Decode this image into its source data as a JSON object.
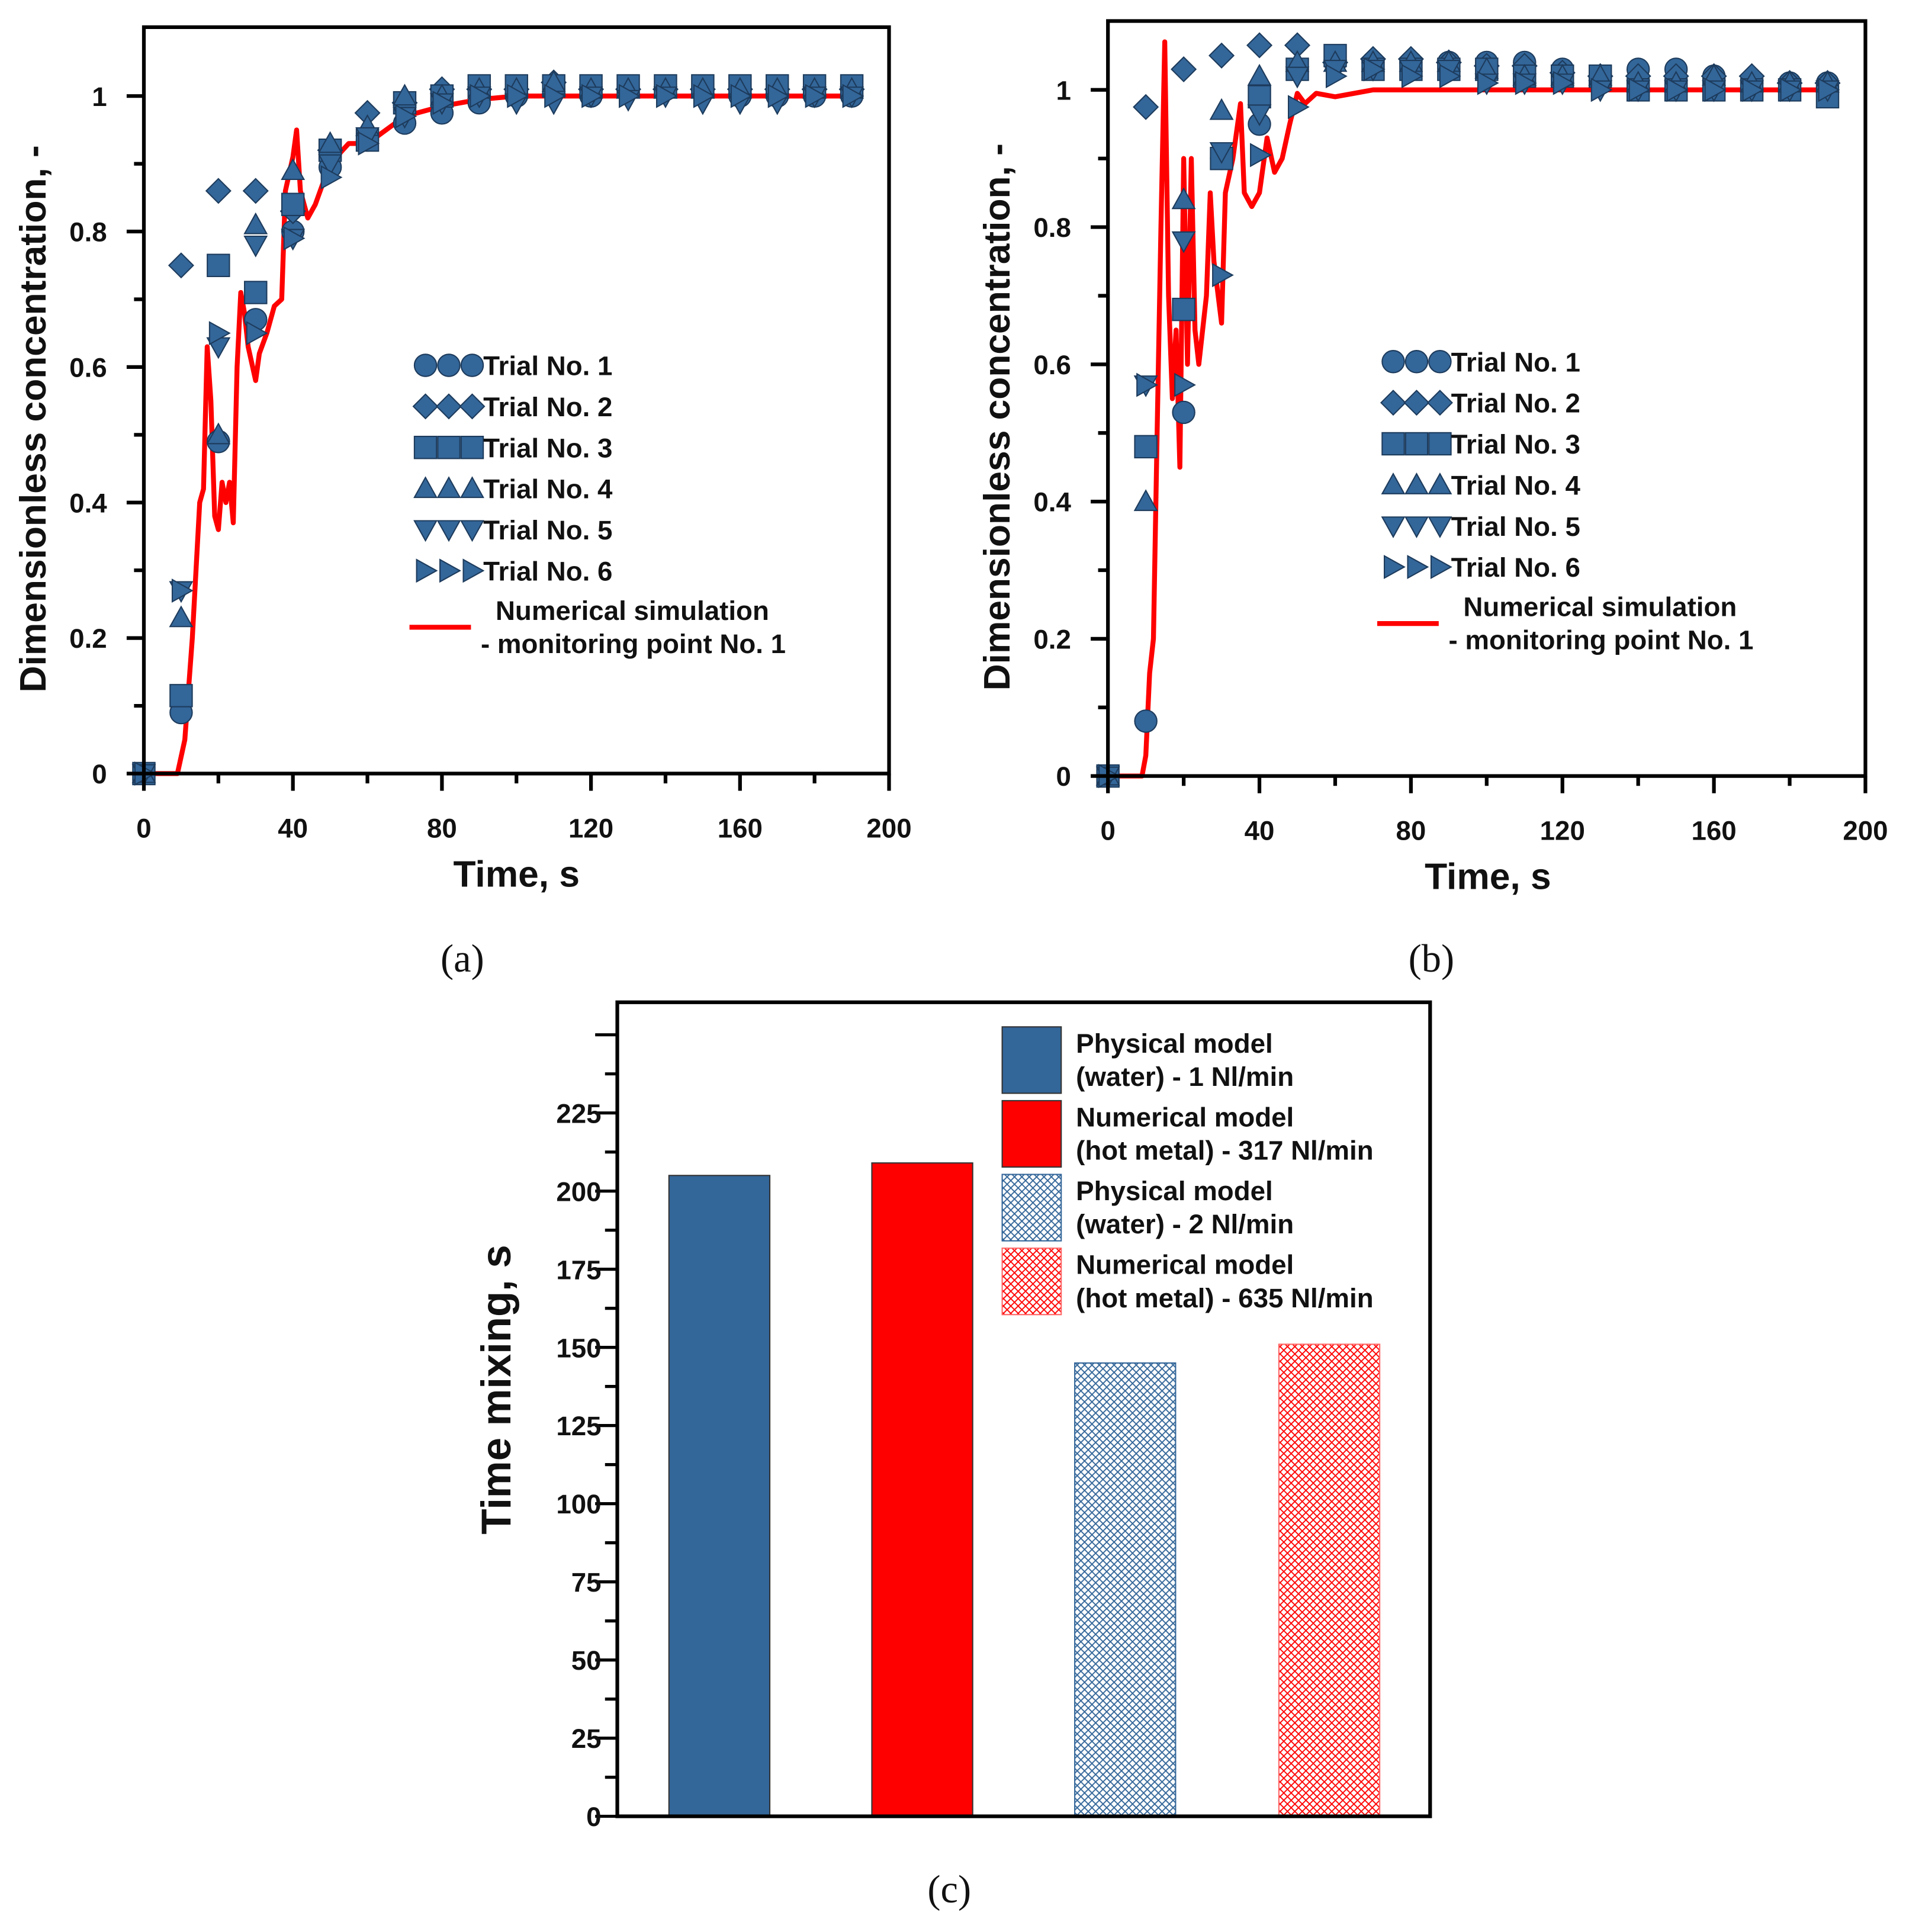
{
  "colors": {
    "marker": "#336699",
    "marker_edge": "#1d3b5c",
    "sim": "#ff0000",
    "physical": "#336699",
    "numerical": "#ff0000"
  },
  "chart_data": [
    {
      "id": "a",
      "caption": "(a)",
      "type": "scatter",
      "xlabel": "Time, s",
      "ylabel": "Dimensionless concentration, -",
      "xlim": [
        0,
        200
      ],
      "ylim": [
        0,
        1.1
      ],
      "xticks": [
        "0",
        "40",
        "80",
        "120",
        "160",
        "200"
      ],
      "yticks": [
        "0",
        "0.2",
        "0.4",
        "0.6",
        "0.8",
        "1"
      ],
      "x": [
        0,
        10,
        20,
        30,
        40,
        50,
        60,
        70,
        80,
        90,
        100,
        110,
        120,
        130,
        140,
        150,
        160,
        170,
        180,
        190
      ],
      "series": [
        {
          "name": "Trial No. 1",
          "marker": "circle",
          "values": [
            0,
            0.09,
            0.49,
            0.67,
            0.8,
            0.895,
            0.935,
            0.96,
            0.975,
            0.99,
            1.0,
            1.01,
            1.0,
            1.01,
            1.01,
            1.01,
            1.0,
            1.0,
            1.0,
            1.0
          ]
        },
        {
          "name": "Trial No. 2",
          "marker": "diamond",
          "values": [
            0,
            0.75,
            0.86,
            0.86,
            0.83,
            0.92,
            0.975,
            0.99,
            1.01,
            1.01,
            1.01,
            1.02,
            1.01,
            1.01,
            1.01,
            1.01,
            1.01,
            1.01,
            1.01,
            1.01
          ]
        },
        {
          "name": "Trial No. 3",
          "marker": "square",
          "values": [
            0,
            0.115,
            0.75,
            0.71,
            0.84,
            0.92,
            0.935,
            0.99,
            1.0,
            1.015,
            1.015,
            1.015,
            1.015,
            1.015,
            1.015,
            1.015,
            1.015,
            1.015,
            1.015,
            1.015
          ]
        },
        {
          "name": "Trial No. 4",
          "marker": "triangle-up",
          "values": [
            0,
            0.23,
            0.5,
            0.81,
            0.89,
            0.93,
            0.955,
            1.0,
            1.0,
            1.01,
            1.01,
            1.02,
            1.01,
            1.01,
            1.01,
            1.01,
            1.01,
            1.01,
            1.01,
            1.01
          ]
        },
        {
          "name": "Trial No. 5",
          "marker": "triangle-down",
          "values": [
            0,
            0.27,
            0.63,
            0.78,
            0.79,
            0.9,
            0.94,
            0.97,
            0.99,
            1.0,
            0.99,
            0.99,
            1.0,
            0.995,
            1.0,
            0.99,
            0.99,
            0.99,
            1.0,
            1.0
          ]
        },
        {
          "name": "Trial No. 6",
          "marker": "triangle-right",
          "values": [
            0,
            0.27,
            0.65,
            0.65,
            0.79,
            0.88,
            0.93,
            0.97,
            0.99,
            1.0,
            1.0,
            1.0,
            1.0,
            1.0,
            1.0,
            1.0,
            1.0,
            1.0,
            1.0,
            1.0
          ]
        }
      ],
      "simulation": {
        "name_line1": "Numerical simulation",
        "name_line2": "- monitoring point No. 1",
        "points": [
          [
            0,
            0
          ],
          [
            9,
            0
          ],
          [
            11,
            0.05
          ],
          [
            13,
            0.2
          ],
          [
            15,
            0.4
          ],
          [
            16,
            0.42
          ],
          [
            17,
            0.63
          ],
          [
            18,
            0.55
          ],
          [
            19,
            0.38
          ],
          [
            20,
            0.36
          ],
          [
            21,
            0.43
          ],
          [
            22,
            0.4
          ],
          [
            23,
            0.43
          ],
          [
            24,
            0.37
          ],
          [
            25,
            0.6
          ],
          [
            26,
            0.71
          ],
          [
            27,
            0.68
          ],
          [
            28,
            0.63
          ],
          [
            30,
            0.58
          ],
          [
            31,
            0.62
          ],
          [
            33,
            0.65
          ],
          [
            35,
            0.69
          ],
          [
            37,
            0.7
          ],
          [
            38,
            0.86
          ],
          [
            40,
            0.91
          ],
          [
            41,
            0.95
          ],
          [
            42,
            0.86
          ],
          [
            44,
            0.82
          ],
          [
            46,
            0.84
          ],
          [
            48,
            0.87
          ],
          [
            50,
            0.9
          ],
          [
            55,
            0.93
          ],
          [
            60,
            0.93
          ],
          [
            65,
            0.95
          ],
          [
            70,
            0.97
          ],
          [
            80,
            0.985
          ],
          [
            90,
            0.995
          ],
          [
            100,
            1.0
          ],
          [
            190,
            1.0
          ]
        ]
      }
    },
    {
      "id": "b",
      "caption": "(b)",
      "type": "scatter",
      "xlabel": "Time, s",
      "ylabel": "Dimensionless concentration, -",
      "xlim": [
        0,
        200
      ],
      "ylim": [
        0,
        1.1
      ],
      "xticks": [
        "0",
        "40",
        "80",
        "120",
        "160",
        "200"
      ],
      "yticks": [
        "0",
        "0.2",
        "0.4",
        "0.6",
        "0.8",
        "1"
      ],
      "x": [
        0,
        10,
        20,
        30,
        40,
        50,
        60,
        70,
        80,
        90,
        100,
        110,
        120,
        130,
        140,
        150,
        160,
        170,
        180,
        190
      ],
      "series": [
        {
          "name": "Trial No. 1",
          "marker": "circle",
          "values": [
            0,
            0.08,
            0.53,
            0.9,
            0.95,
            1.03,
            1.04,
            1.04,
            1.04,
            1.04,
            1.04,
            1.04,
            1.03,
            1.02,
            1.03,
            1.03,
            1.02,
            1.01,
            1.01,
            1.01
          ]
        },
        {
          "name": "Trial No. 2",
          "marker": "diamond",
          "values": [
            0,
            0.975,
            1.03,
            1.05,
            1.065,
            1.065,
            1.04,
            1.045,
            1.045,
            1.04,
            1.035,
            1.035,
            1.025,
            1.02,
            1.02,
            1.02,
            1.02,
            1.02,
            1.01,
            1.01
          ]
        },
        {
          "name": "Trial No. 3",
          "marker": "square",
          "values": [
            0,
            0.48,
            0.68,
            0.9,
            0.99,
            1.03,
            1.05,
            1.03,
            1.03,
            1.03,
            1.03,
            1.02,
            1.02,
            1.02,
            1.0,
            1.0,
            1.0,
            1.0,
            1.0,
            0.99
          ]
        },
        {
          "name": "Trial No. 4",
          "marker": "triangle-up",
          "values": [
            0,
            0.4,
            0.84,
            0.97,
            1.02,
            1.04,
            1.04,
            1.04,
            1.04,
            1.04,
            1.03,
            1.02,
            1.02,
            1.02,
            1.01,
            1.01,
            1.02,
            1.01,
            1.01,
            1.01
          ]
        },
        {
          "name": "Trial No. 5",
          "marker": "triangle-down",
          "values": [
            0,
            0.57,
            0.78,
            0.91,
            0.965,
            1.02,
            1.03,
            1.03,
            1.03,
            1.03,
            1.01,
            1.01,
            1.01,
            1.0,
            1.0,
            1.0,
            1.0,
            1.0,
            1.0,
            1.0
          ]
        },
        {
          "name": "Trial No. 6",
          "marker": "triangle-right",
          "values": [
            0,
            0.57,
            0.57,
            0.73,
            0.905,
            0.975,
            1.02,
            1.03,
            1.02,
            1.02,
            1.01,
            1.01,
            1.01,
            1.0,
            1.0,
            1.0,
            1.0,
            1.0,
            1.0,
            1.0
          ]
        }
      ],
      "simulation": {
        "name_line1": "Numerical simulation",
        "name_line2": "- monitoring point No. 1",
        "points": [
          [
            0,
            0
          ],
          [
            9,
            0
          ],
          [
            10,
            0.03
          ],
          [
            11,
            0.15
          ],
          [
            12,
            0.2
          ],
          [
            13,
            0.5
          ],
          [
            14,
            0.8
          ],
          [
            15,
            1.07
          ],
          [
            16,
            0.7
          ],
          [
            17,
            0.55
          ],
          [
            18,
            0.65
          ],
          [
            19,
            0.45
          ],
          [
            20,
            0.9
          ],
          [
            21,
            0.6
          ],
          [
            22,
            0.9
          ],
          [
            23,
            0.65
          ],
          [
            24,
            0.6
          ],
          [
            26,
            0.7
          ],
          [
            27,
            0.85
          ],
          [
            28,
            0.75
          ],
          [
            30,
            0.66
          ],
          [
            31,
            0.85
          ],
          [
            33,
            0.9
          ],
          [
            35,
            0.98
          ],
          [
            36,
            0.85
          ],
          [
            38,
            0.83
          ],
          [
            40,
            0.85
          ],
          [
            42,
            0.93
          ],
          [
            44,
            0.88
          ],
          [
            46,
            0.9
          ],
          [
            48,
            0.95
          ],
          [
            50,
            0.995
          ],
          [
            52,
            0.98
          ],
          [
            55,
            0.995
          ],
          [
            60,
            0.99
          ],
          [
            65,
            0.995
          ],
          [
            70,
            1.0
          ],
          [
            190,
            1.0
          ]
        ]
      }
    },
    {
      "id": "c",
      "caption": "(c)",
      "type": "bar",
      "ylabel": "Time mixing, s",
      "ylim": [
        0,
        260
      ],
      "yticks": [
        "0",
        "25",
        "50",
        "75",
        "100",
        "125",
        "150",
        "175",
        "200",
        "225"
      ],
      "categories": [
        "Physical model (water) - 1 Nl/min",
        "Numerical model (hot metal) - 317 Nl/min",
        "Physical model (water) - 2 Nl/min",
        "Numerical model (hot metal) - 635 Nl/min"
      ],
      "values": [
        205,
        209,
        145,
        151
      ],
      "legend": [
        {
          "line1": "Physical model",
          "line2": "(water) - 1 Nl/min",
          "fill": "physical"
        },
        {
          "line1": "Numerical model",
          "line2": "(hot metal) - 317 Nl/min",
          "fill": "numerical"
        },
        {
          "line1": "Physical model",
          "line2": "(water) - 2 Nl/min",
          "fill": "physical-hatch"
        },
        {
          "line1": "Numerical model",
          "line2": "(hot metal) - 635 Nl/min",
          "fill": "numerical-hatch"
        }
      ]
    }
  ]
}
